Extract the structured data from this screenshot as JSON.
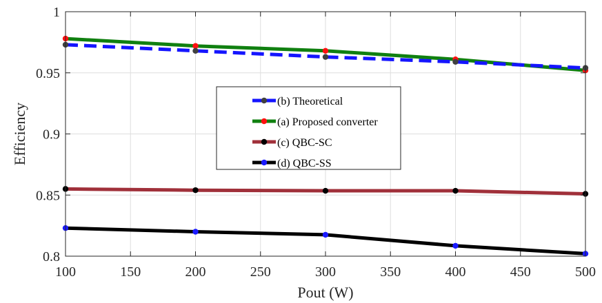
{
  "chart_data": {
    "type": "line",
    "title": "",
    "xlabel": "Pout (W)",
    "ylabel": "Efficiency",
    "xlim": [
      100,
      500
    ],
    "ylim": [
      0.8,
      1.0
    ],
    "xticks": [
      100,
      150,
      200,
      250,
      300,
      350,
      400,
      450,
      500
    ],
    "yticks": [
      0.8,
      0.85,
      0.9,
      0.95,
      1.0
    ],
    "ytick_labels": [
      "0.8",
      "0.85",
      "0.9",
      "0.95",
      "1"
    ],
    "grid": true,
    "legend_position": "center",
    "legend_order": [
      "(b) Theoretical",
      "(a) Proposed converter",
      "(c) QBC-SC",
      "(d) QBC-SS"
    ],
    "series": [
      {
        "name": "(b) Theoretical",
        "x": [
          100,
          200,
          300,
          400,
          500
        ],
        "y": [
          0.973,
          0.968,
          0.963,
          0.959,
          0.954
        ],
        "line_color": "#1515ff",
        "marker_color": "#404040",
        "dashed": true
      },
      {
        "name": "(a) Proposed converter",
        "x": [
          100,
          200,
          300,
          400,
          500
        ],
        "y": [
          0.978,
          0.972,
          0.968,
          0.961,
          0.952
        ],
        "line_color": "#108010",
        "marker_color": "#ff1010",
        "dashed": false
      },
      {
        "name": "(c) QBC-SC",
        "x": [
          100,
          200,
          300,
          400,
          500
        ],
        "y": [
          0.855,
          0.854,
          0.8535,
          0.8535,
          0.851
        ],
        "line_color": "#a0303a",
        "marker_color": "#000000",
        "dashed": false
      },
      {
        "name": "(d) QBC-SS",
        "x": [
          100,
          200,
          300,
          400,
          500
        ],
        "y": [
          0.823,
          0.82,
          0.8175,
          0.8085,
          0.802
        ],
        "line_color": "#000000",
        "marker_color": "#1a1aff",
        "dashed": false
      }
    ]
  }
}
